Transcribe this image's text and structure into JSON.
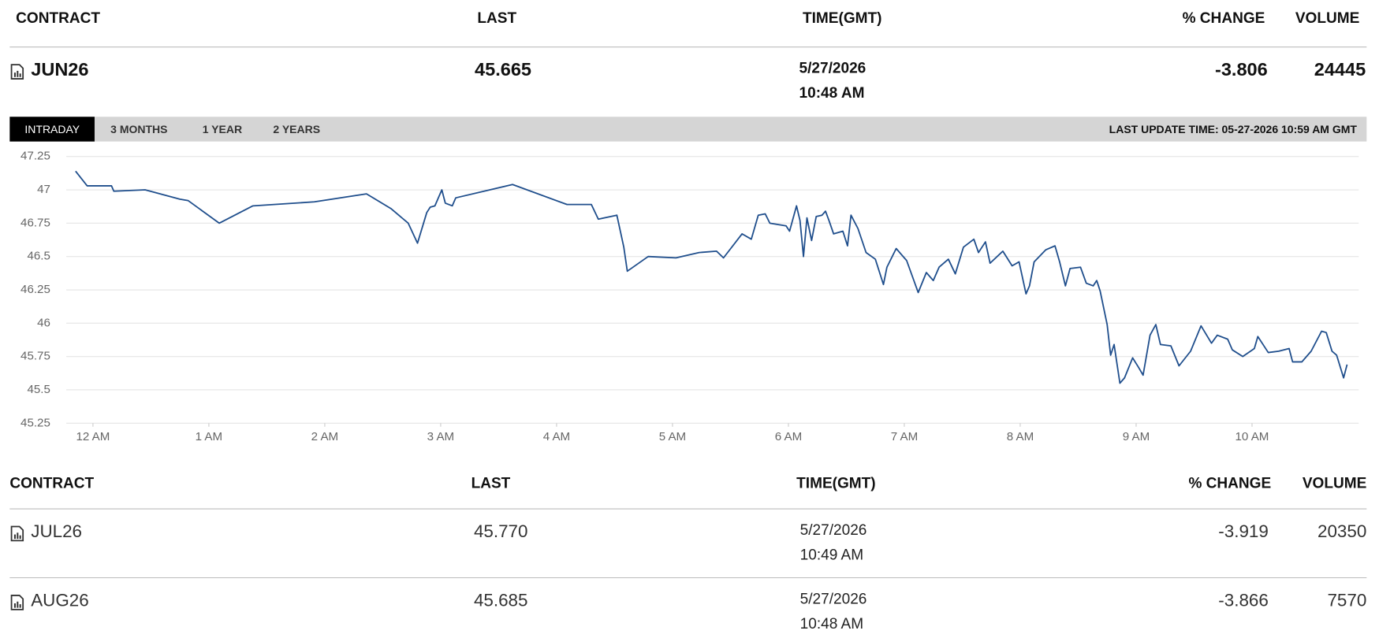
{
  "header": {
    "columns": [
      "CONTRACT",
      "LAST",
      "TIME(GMT)",
      "% CHANGE",
      "VOLUME"
    ]
  },
  "featured": {
    "contract": "JUN26",
    "last": "45.665",
    "date": "5/27/2026",
    "time": "10:48 AM",
    "change": "-3.806",
    "volume": "24445"
  },
  "tabs": [
    "INTRADAY",
    "3 MONTHS",
    "1 YEAR",
    "2 YEARS"
  ],
  "last_update": "LAST UPDATE TIME: 05-27-2026 10:59 AM GMT",
  "chart_data": {
    "type": "line",
    "color": "#1f4e8c",
    "grid": true,
    "xlim": [
      -0.23,
      10.92
    ],
    "ylim": [
      45.25,
      47.25
    ],
    "yticks": [
      45.25,
      45.5,
      45.75,
      46,
      46.25,
      46.5,
      46.75,
      47,
      47.25
    ],
    "xticks": [
      {
        "value": 0,
        "label": "12 AM"
      },
      {
        "value": 1,
        "label": "1 AM"
      },
      {
        "value": 2,
        "label": "2 AM"
      },
      {
        "value": 3,
        "label": "3 AM"
      },
      {
        "value": 4,
        "label": "4 AM"
      },
      {
        "value": 5,
        "label": "5 AM"
      },
      {
        "value": 6,
        "label": "6 AM"
      },
      {
        "value": 7,
        "label": "7 AM"
      },
      {
        "value": 8,
        "label": "8 AM"
      },
      {
        "value": 9,
        "label": "9 AM"
      },
      {
        "value": 10,
        "label": "10 AM"
      }
    ],
    "x": [
      -0.15,
      -0.05,
      0.16,
      0.18,
      0.45,
      0.75,
      0.82,
      1.09,
      1.38,
      1.91,
      2.36,
      2.57,
      2.72,
      2.8,
      2.88,
      2.91,
      2.95,
      3.01,
      3.04,
      3.1,
      3.13,
      3.62,
      4.09,
      4.3,
      4.36,
      4.52,
      4.58,
      4.61,
      4.79,
      5.03,
      5.23,
      5.38,
      5.44,
      5.6,
      5.68,
      5.74,
      5.8,
      5.84,
      5.98,
      6.01,
      6.07,
      6.1,
      6.13,
      6.16,
      6.2,
      6.24,
      6.29,
      6.32,
      6.35,
      6.39,
      6.47,
      6.51,
      6.54,
      6.6,
      6.67,
      6.75,
      6.82,
      6.85,
      6.93,
      7.02,
      7.12,
      7.19,
      7.25,
      7.3,
      7.38,
      7.44,
      7.51,
      7.6,
      7.64,
      7.7,
      7.74,
      7.85,
      7.93,
      7.99,
      8.05,
      8.08,
      8.12,
      8.22,
      8.3,
      8.34,
      8.39,
      8.43,
      8.52,
      8.57,
      8.63,
      8.66,
      8.69,
      8.75,
      8.78,
      8.81,
      8.86,
      8.9,
      8.97,
      9.02,
      9.06,
      9.12,
      9.17,
      9.21,
      9.3,
      9.37,
      9.47,
      9.56,
      9.65,
      9.7,
      9.79,
      9.83,
      9.92,
      10.02,
      10.05,
      10.14,
      10.23,
      10.32,
      10.35,
      10.43,
      10.51,
      10.6,
      10.64,
      10.69,
      10.73,
      10.79,
      10.82
    ],
    "values": [
      47.14,
      47.03,
      47.03,
      46.99,
      47.0,
      46.93,
      46.92,
      46.75,
      46.88,
      46.91,
      46.97,
      46.86,
      46.75,
      46.6,
      46.83,
      46.87,
      46.88,
      47.0,
      46.9,
      46.88,
      46.94,
      47.04,
      46.89,
      46.89,
      46.78,
      46.81,
      46.57,
      46.39,
      46.5,
      46.49,
      46.53,
      46.54,
      46.49,
      46.67,
      46.63,
      46.81,
      46.82,
      46.75,
      46.73,
      46.69,
      46.88,
      46.77,
      46.5,
      46.79,
      46.62,
      46.8,
      46.81,
      46.84,
      46.77,
      46.67,
      46.69,
      46.58,
      46.81,
      46.71,
      46.53,
      46.48,
      46.29,
      46.42,
      46.56,
      46.47,
      46.23,
      46.38,
      46.32,
      46.42,
      46.48,
      46.37,
      46.57,
      46.63,
      46.53,
      46.61,
      46.45,
      46.54,
      46.43,
      46.46,
      46.22,
      46.28,
      46.46,
      46.55,
      46.58,
      46.46,
      46.28,
      46.41,
      46.42,
      46.3,
      46.28,
      46.32,
      46.24,
      45.99,
      45.76,
      45.84,
      45.55,
      45.59,
      45.74,
      45.67,
      45.61,
      45.91,
      45.99,
      45.84,
      45.83,
      45.68,
      45.79,
      45.98,
      45.85,
      45.91,
      45.88,
      45.8,
      45.75,
      45.81,
      45.9,
      45.78,
      45.79,
      45.81,
      45.71,
      45.71,
      45.79,
      45.94,
      45.93,
      45.79,
      45.76,
      45.59,
      45.69
    ]
  },
  "table": {
    "columns": [
      "CONTRACT",
      "LAST",
      "TIME(GMT)",
      "% CHANGE",
      "VOLUME"
    ],
    "rows": [
      [
        "JUL26",
        "45.770",
        "5/27/2026",
        "10:49 AM",
        "-3.919",
        "20350"
      ],
      [
        "AUG26",
        "45.685",
        "5/27/2026",
        "10:48 AM",
        "-3.866",
        "7570"
      ]
    ]
  }
}
